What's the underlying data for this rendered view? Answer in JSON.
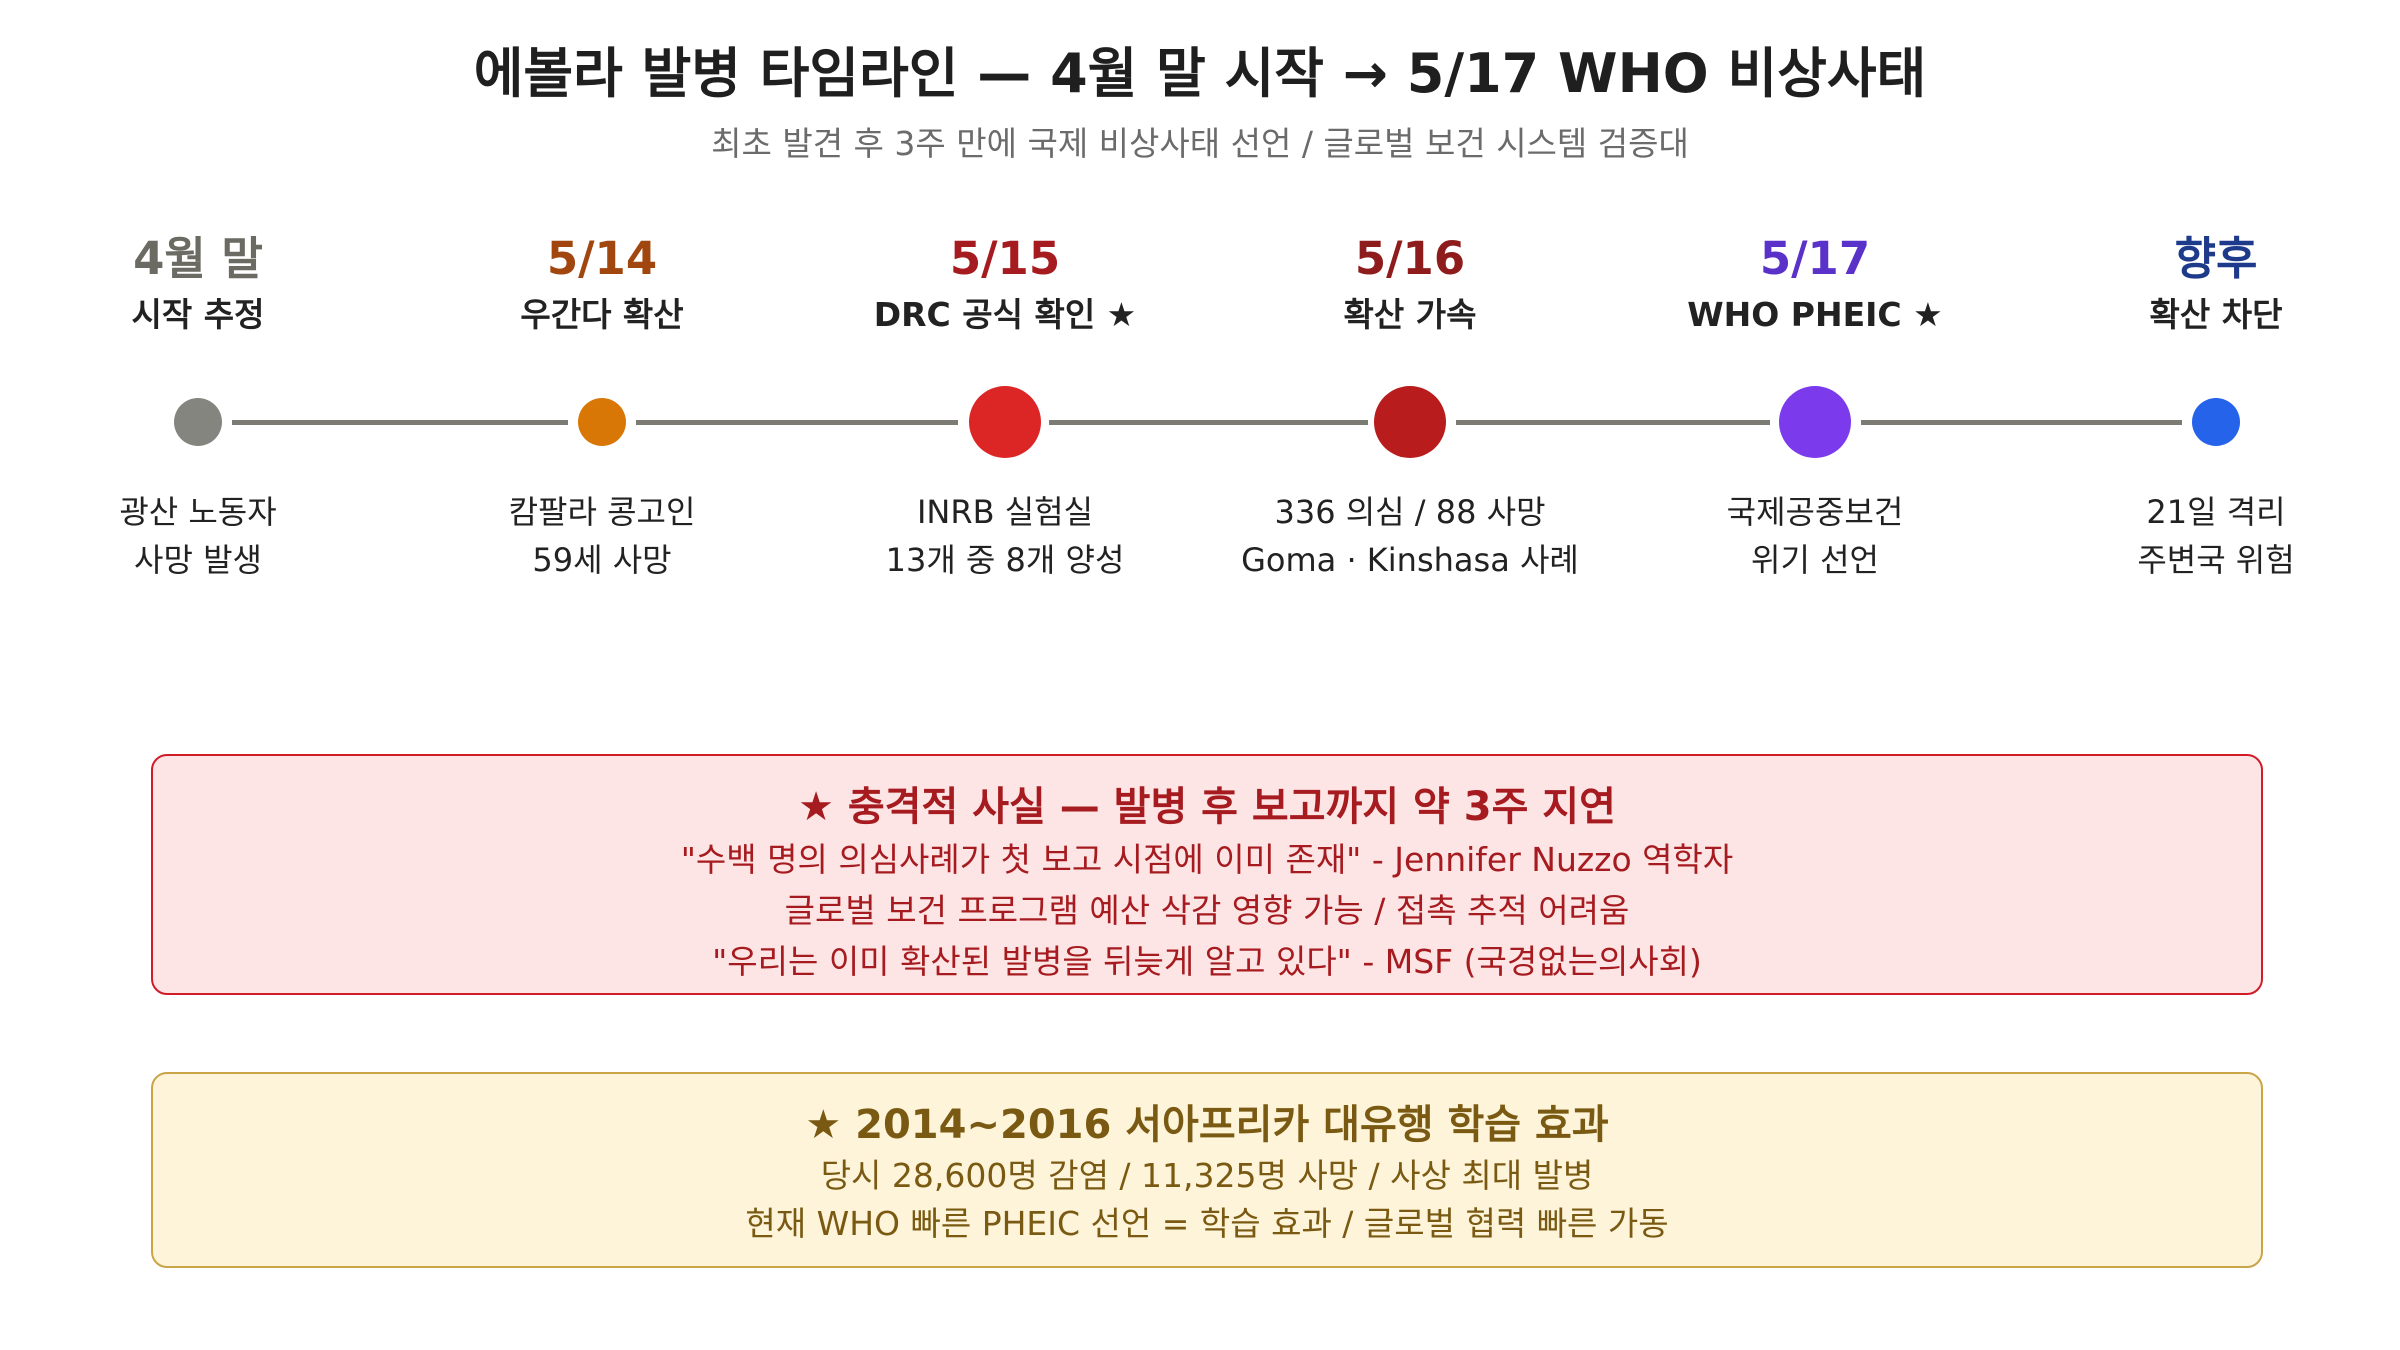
{
  "header": {
    "title": "에볼라 발병 타임라인 — 4월 말 시작 → 5/17 WHO 비상사태",
    "subtitle": "최초 발견 후 3주 만에 국제 비상사태 선언 / 글로벌 보건 시스템 검증대"
  },
  "timeline": {
    "line_color": "#7c7c74",
    "events": [
      {
        "date": "4월 말",
        "label": "시작 추정",
        "desc": [
          "광산 노동자",
          "사망 발생"
        ],
        "date_color": "#6b6b63",
        "dot_color": "#85857f",
        "dot": "small"
      },
      {
        "date": "5/14",
        "label": "우간다 확산",
        "desc": [
          "캄팔라 콩고인",
          "59세 사망"
        ],
        "date_color": "#a0460e",
        "dot_color": "#d97706",
        "dot": "small"
      },
      {
        "date": "5/15",
        "label": "DRC 공식 확인 ★",
        "desc": [
          "INRB 실험실",
          "13개 중 8개 양성"
        ],
        "date_color": "#a61b1f",
        "dot_color": "#dc2626",
        "dot": "large"
      },
      {
        "date": "5/16",
        "label": "확산 가속",
        "desc": [
          "336 의심 / 88 사망",
          "Goma · Kinshasa 사례"
        ],
        "date_color": "#8f1c1c",
        "dot_color": "#b91c1c",
        "dot": "large"
      },
      {
        "date": "5/17",
        "label": "WHO PHEIC ★",
        "desc": [
          "국제공중보건",
          "위기 선언"
        ],
        "date_color": "#5b32c9",
        "dot_color": "#7c3aed",
        "dot": "large"
      },
      {
        "date": "향후",
        "label": "확산 차단",
        "desc": [
          "21일 격리",
          "주변국 위험"
        ],
        "date_color": "#1e3a8a",
        "dot_color": "#2563eb",
        "dot": "small"
      }
    ]
  },
  "alert_box": {
    "title": "★ 충격적 사실 — 발병 후 보고까지 약 3주 지연",
    "lines": [
      "\"수백 명의 의심사례가 첫 보고 시점에 이미 존재\" - Jennifer Nuzzo 역학자",
      "글로벌 보건 프로그램 예산 삭감 영향 가능 / 접촉 추적 어려움",
      "\"우리는 이미 확산된 발병을 뒤늦게 알고 있다\" - MSF (국경없는의사회)"
    ]
  },
  "lesson_box": {
    "title": "★ 2014~2016 서아프리카 대유행 학습 효과",
    "lines": [
      "당시 28,600명 감염 / 11,325명 사망 / 사상 최대 발병",
      "현재 WHO 빠른 PHEIC 선언 = 학습 효과 / 글로벌 협력 빠른 가동"
    ]
  }
}
